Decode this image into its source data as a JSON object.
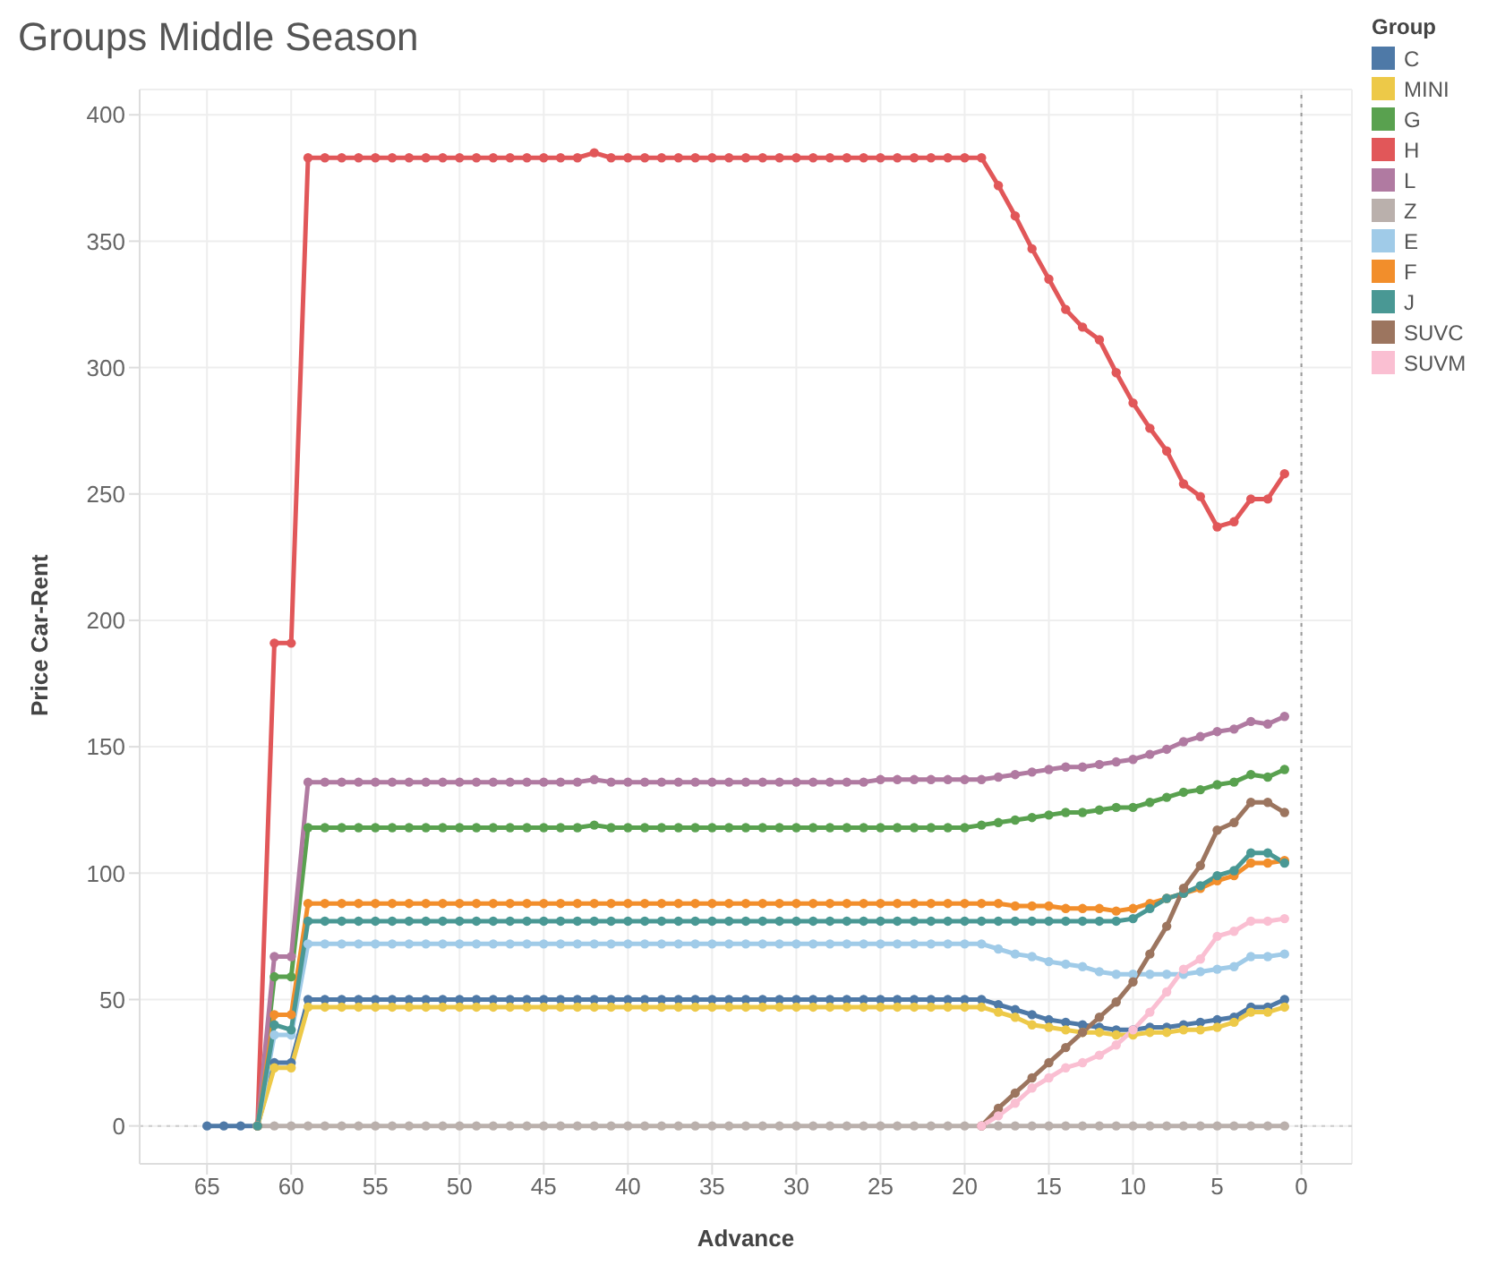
{
  "chart_data": {
    "type": "line",
    "title": "Groups Middle Season",
    "xlabel": "Advance",
    "ylabel": "Price Car-Rent",
    "legend_title": "Group",
    "legend": "right",
    "grid": true,
    "marker": "circle",
    "line_style": "solid",
    "xlim": [
      69,
      -3
    ],
    "xticks": [
      65,
      60,
      55,
      50,
      45,
      40,
      35,
      30,
      25,
      20,
      15,
      10,
      5,
      0
    ],
    "ylim": [
      -15,
      410
    ],
    "yticks": [
      0,
      50,
      100,
      150,
      200,
      250,
      300,
      350,
      400
    ],
    "ref_lines": [
      {
        "axis": "x",
        "value": 0,
        "color": "#999999",
        "line_style": "dotted"
      },
      {
        "axis": "y",
        "value": 0,
        "color": "#cccccc",
        "line_style": "dotted"
      }
    ],
    "series": [
      {
        "name": "C",
        "color": "#4e79a7",
        "x": [
          65,
          64,
          63,
          62,
          61,
          60,
          59,
          58,
          57,
          56,
          55,
          54,
          53,
          52,
          51,
          50,
          49,
          48,
          47,
          46,
          45,
          44,
          43,
          42,
          41,
          40,
          39,
          38,
          37,
          36,
          35,
          34,
          33,
          32,
          31,
          30,
          29,
          28,
          27,
          26,
          25,
          24,
          23,
          22,
          21,
          20,
          19,
          18,
          17,
          16,
          15,
          14,
          13,
          12,
          11,
          10,
          9,
          8,
          7,
          6,
          5,
          4,
          3,
          2,
          1
        ],
        "values": [
          0,
          0,
          0,
          0,
          25,
          25,
          50,
          50,
          50,
          50,
          50,
          50,
          50,
          50,
          50,
          50,
          50,
          50,
          50,
          50,
          50,
          50,
          50,
          50,
          50,
          50,
          50,
          50,
          50,
          50,
          50,
          50,
          50,
          50,
          50,
          50,
          50,
          50,
          50,
          50,
          50,
          50,
          50,
          50,
          50,
          50,
          50,
          48,
          46,
          44,
          42,
          41,
          40,
          39,
          38,
          38,
          39,
          39,
          40,
          41,
          42,
          43,
          47,
          47,
          50
        ]
      },
      {
        "name": "MINI",
        "color": "#edc948",
        "x": [
          62,
          61,
          60,
          59,
          58,
          57,
          56,
          55,
          54,
          53,
          52,
          51,
          50,
          49,
          48,
          47,
          46,
          45,
          44,
          43,
          42,
          41,
          40,
          39,
          38,
          37,
          36,
          35,
          34,
          33,
          32,
          31,
          30,
          29,
          28,
          27,
          26,
          25,
          24,
          23,
          22,
          21,
          20,
          19,
          18,
          17,
          16,
          15,
          14,
          13,
          12,
          11,
          10,
          9,
          8,
          7,
          6,
          5,
          4,
          3,
          2,
          1
        ],
        "values": [
          0,
          23,
          23,
          47,
          47,
          47,
          47,
          47,
          47,
          47,
          47,
          47,
          47,
          47,
          47,
          47,
          47,
          47,
          47,
          47,
          47,
          47,
          47,
          47,
          47,
          47,
          47,
          47,
          47,
          47,
          47,
          47,
          47,
          47,
          47,
          47,
          47,
          47,
          47,
          47,
          47,
          47,
          47,
          47,
          45,
          43,
          40,
          39,
          38,
          37,
          37,
          36,
          36,
          37,
          37,
          38,
          38,
          39,
          41,
          45,
          45,
          47
        ]
      },
      {
        "name": "G",
        "color": "#59a14f",
        "x": [
          62,
          61,
          60,
          59,
          58,
          57,
          56,
          55,
          54,
          53,
          52,
          51,
          50,
          49,
          48,
          47,
          46,
          45,
          44,
          43,
          42,
          41,
          40,
          39,
          38,
          37,
          36,
          35,
          34,
          33,
          32,
          31,
          30,
          29,
          28,
          27,
          26,
          25,
          24,
          23,
          22,
          21,
          20,
          19,
          18,
          17,
          16,
          15,
          14,
          13,
          12,
          11,
          10,
          9,
          8,
          7,
          6,
          5,
          4,
          3,
          2,
          1
        ],
        "values": [
          0,
          59,
          59,
          118,
          118,
          118,
          118,
          118,
          118,
          118,
          118,
          118,
          118,
          118,
          118,
          118,
          118,
          118,
          118,
          118,
          119,
          118,
          118,
          118,
          118,
          118,
          118,
          118,
          118,
          118,
          118,
          118,
          118,
          118,
          118,
          118,
          118,
          118,
          118,
          118,
          118,
          118,
          118,
          119,
          120,
          121,
          122,
          123,
          124,
          124,
          125,
          126,
          126,
          128,
          130,
          132,
          133,
          135,
          136,
          139,
          138,
          141
        ]
      },
      {
        "name": "H",
        "color": "#e15759",
        "x": [
          62,
          61,
          60,
          59,
          58,
          57,
          56,
          55,
          54,
          53,
          52,
          51,
          50,
          49,
          48,
          47,
          46,
          45,
          44,
          43,
          42,
          41,
          40,
          39,
          38,
          37,
          36,
          35,
          34,
          33,
          32,
          31,
          30,
          29,
          28,
          27,
          26,
          25,
          24,
          23,
          22,
          21,
          20,
          19,
          18,
          17,
          16,
          15,
          14,
          13,
          12,
          11,
          10,
          9,
          8,
          7,
          6,
          5,
          4,
          3,
          2,
          1
        ],
        "values": [
          0,
          191,
          191,
          383,
          383,
          383,
          383,
          383,
          383,
          383,
          383,
          383,
          383,
          383,
          383,
          383,
          383,
          383,
          383,
          383,
          385,
          383,
          383,
          383,
          383,
          383,
          383,
          383,
          383,
          383,
          383,
          383,
          383,
          383,
          383,
          383,
          383,
          383,
          383,
          383,
          383,
          383,
          383,
          383,
          372,
          360,
          347,
          335,
          323,
          316,
          311,
          298,
          286,
          276,
          267,
          254,
          249,
          237,
          239,
          248,
          248,
          258
        ]
      },
      {
        "name": "L",
        "color": "#b07aa1",
        "x": [
          62,
          61,
          60,
          59,
          58,
          57,
          56,
          55,
          54,
          53,
          52,
          51,
          50,
          49,
          48,
          47,
          46,
          45,
          44,
          43,
          42,
          41,
          40,
          39,
          38,
          37,
          36,
          35,
          34,
          33,
          32,
          31,
          30,
          29,
          28,
          27,
          26,
          25,
          24,
          23,
          22,
          21,
          20,
          19,
          18,
          17,
          16,
          15,
          14,
          13,
          12,
          11,
          10,
          9,
          8,
          7,
          6,
          5,
          4,
          3,
          2,
          1
        ],
        "values": [
          0,
          67,
          67,
          136,
          136,
          136,
          136,
          136,
          136,
          136,
          136,
          136,
          136,
          136,
          136,
          136,
          136,
          136,
          136,
          136,
          137,
          136,
          136,
          136,
          136,
          136,
          136,
          136,
          136,
          136,
          136,
          136,
          136,
          136,
          136,
          136,
          136,
          137,
          137,
          137,
          137,
          137,
          137,
          137,
          138,
          139,
          140,
          141,
          142,
          142,
          143,
          144,
          145,
          147,
          149,
          152,
          154,
          156,
          157,
          160,
          159,
          162
        ]
      },
      {
        "name": "Z",
        "color": "#bab0ac",
        "x": [
          62,
          61,
          60,
          59,
          58,
          57,
          56,
          55,
          54,
          53,
          52,
          51,
          50,
          49,
          48,
          47,
          46,
          45,
          44,
          43,
          42,
          41,
          40,
          39,
          38,
          37,
          36,
          35,
          34,
          33,
          32,
          31,
          30,
          29,
          28,
          27,
          26,
          25,
          24,
          23,
          22,
          21,
          20,
          19,
          18,
          17,
          16,
          15,
          14,
          13,
          12,
          11,
          10,
          9,
          8,
          7,
          6,
          5,
          4,
          3,
          2,
          1
        ],
        "values": [
          0,
          0,
          0,
          0,
          0,
          0,
          0,
          0,
          0,
          0,
          0,
          0,
          0,
          0,
          0,
          0,
          0,
          0,
          0,
          0,
          0,
          0,
          0,
          0,
          0,
          0,
          0,
          0,
          0,
          0,
          0,
          0,
          0,
          0,
          0,
          0,
          0,
          0,
          0,
          0,
          0,
          0,
          0,
          0,
          0,
          0,
          0,
          0,
          0,
          0,
          0,
          0,
          0,
          0,
          0,
          0,
          0,
          0,
          0,
          0,
          0,
          0
        ]
      },
      {
        "name": "E",
        "color": "#a0cbe8",
        "x": [
          62,
          61,
          60,
          59,
          58,
          57,
          56,
          55,
          54,
          53,
          52,
          51,
          50,
          49,
          48,
          47,
          46,
          45,
          44,
          43,
          42,
          41,
          40,
          39,
          38,
          37,
          36,
          35,
          34,
          33,
          32,
          31,
          30,
          29,
          28,
          27,
          26,
          25,
          24,
          23,
          22,
          21,
          20,
          19,
          18,
          17,
          16,
          15,
          14,
          13,
          12,
          11,
          10,
          9,
          8,
          7,
          6,
          5,
          4,
          3,
          2,
          1
        ],
        "values": [
          0,
          36,
          36,
          72,
          72,
          72,
          72,
          72,
          72,
          72,
          72,
          72,
          72,
          72,
          72,
          72,
          72,
          72,
          72,
          72,
          72,
          72,
          72,
          72,
          72,
          72,
          72,
          72,
          72,
          72,
          72,
          72,
          72,
          72,
          72,
          72,
          72,
          72,
          72,
          72,
          72,
          72,
          72,
          72,
          70,
          68,
          67,
          65,
          64,
          63,
          61,
          60,
          60,
          60,
          60,
          60,
          61,
          62,
          63,
          67,
          67,
          68
        ]
      },
      {
        "name": "F",
        "color": "#f28e2b",
        "x": [
          62,
          61,
          60,
          59,
          58,
          57,
          56,
          55,
          54,
          53,
          52,
          51,
          50,
          49,
          48,
          47,
          46,
          45,
          44,
          43,
          42,
          41,
          40,
          39,
          38,
          37,
          36,
          35,
          34,
          33,
          32,
          31,
          30,
          29,
          28,
          27,
          26,
          25,
          24,
          23,
          22,
          21,
          20,
          19,
          18,
          17,
          16,
          15,
          14,
          13,
          12,
          11,
          10,
          9,
          8,
          7,
          6,
          5,
          4,
          3,
          2,
          1
        ],
        "values": [
          0,
          44,
          44,
          88,
          88,
          88,
          88,
          88,
          88,
          88,
          88,
          88,
          88,
          88,
          88,
          88,
          88,
          88,
          88,
          88,
          88,
          88,
          88,
          88,
          88,
          88,
          88,
          88,
          88,
          88,
          88,
          88,
          88,
          88,
          88,
          88,
          88,
          88,
          88,
          88,
          88,
          88,
          88,
          88,
          88,
          87,
          87,
          87,
          86,
          86,
          86,
          85,
          86,
          88,
          90,
          92,
          94,
          97,
          99,
          104,
          104,
          105
        ]
      },
      {
        "name": "J",
        "color": "#499894",
        "x": [
          62,
          61,
          60,
          59,
          58,
          57,
          56,
          55,
          54,
          53,
          52,
          51,
          50,
          49,
          48,
          47,
          46,
          45,
          44,
          43,
          42,
          41,
          40,
          39,
          38,
          37,
          36,
          35,
          34,
          33,
          32,
          31,
          30,
          29,
          28,
          27,
          26,
          25,
          24,
          23,
          22,
          21,
          20,
          19,
          18,
          17,
          16,
          15,
          14,
          13,
          12,
          11,
          10,
          9,
          8,
          7,
          6,
          5,
          4,
          3,
          2,
          1
        ],
        "values": [
          0,
          40,
          38,
          81,
          81,
          81,
          81,
          81,
          81,
          81,
          81,
          81,
          81,
          81,
          81,
          81,
          81,
          81,
          81,
          81,
          81,
          81,
          81,
          81,
          81,
          81,
          81,
          81,
          81,
          81,
          81,
          81,
          81,
          81,
          81,
          81,
          81,
          81,
          81,
          81,
          81,
          81,
          81,
          81,
          81,
          81,
          81,
          81,
          81,
          81,
          81,
          81,
          82,
          86,
          90,
          92,
          95,
          99,
          101,
          108,
          108,
          104
        ]
      },
      {
        "name": "SUVC",
        "color": "#9c755f",
        "x": [
          19,
          18,
          17,
          16,
          15,
          14,
          13,
          12,
          11,
          10,
          9,
          8,
          7,
          6,
          5,
          4,
          3,
          2,
          1
        ],
        "values": [
          0,
          7,
          13,
          19,
          25,
          31,
          37,
          43,
          49,
          57,
          68,
          79,
          94,
          103,
          117,
          120,
          128,
          128,
          124
        ]
      },
      {
        "name": "SUVM",
        "color": "#fabfd2",
        "x": [
          19,
          18,
          17,
          16,
          15,
          14,
          13,
          12,
          11,
          10,
          9,
          8,
          7,
          6,
          5,
          4,
          3,
          2,
          1
        ],
        "values": [
          0,
          4,
          9,
          15,
          19,
          23,
          25,
          28,
          32,
          38,
          45,
          53,
          62,
          66,
          75,
          77,
          81,
          81,
          82
        ]
      }
    ]
  }
}
